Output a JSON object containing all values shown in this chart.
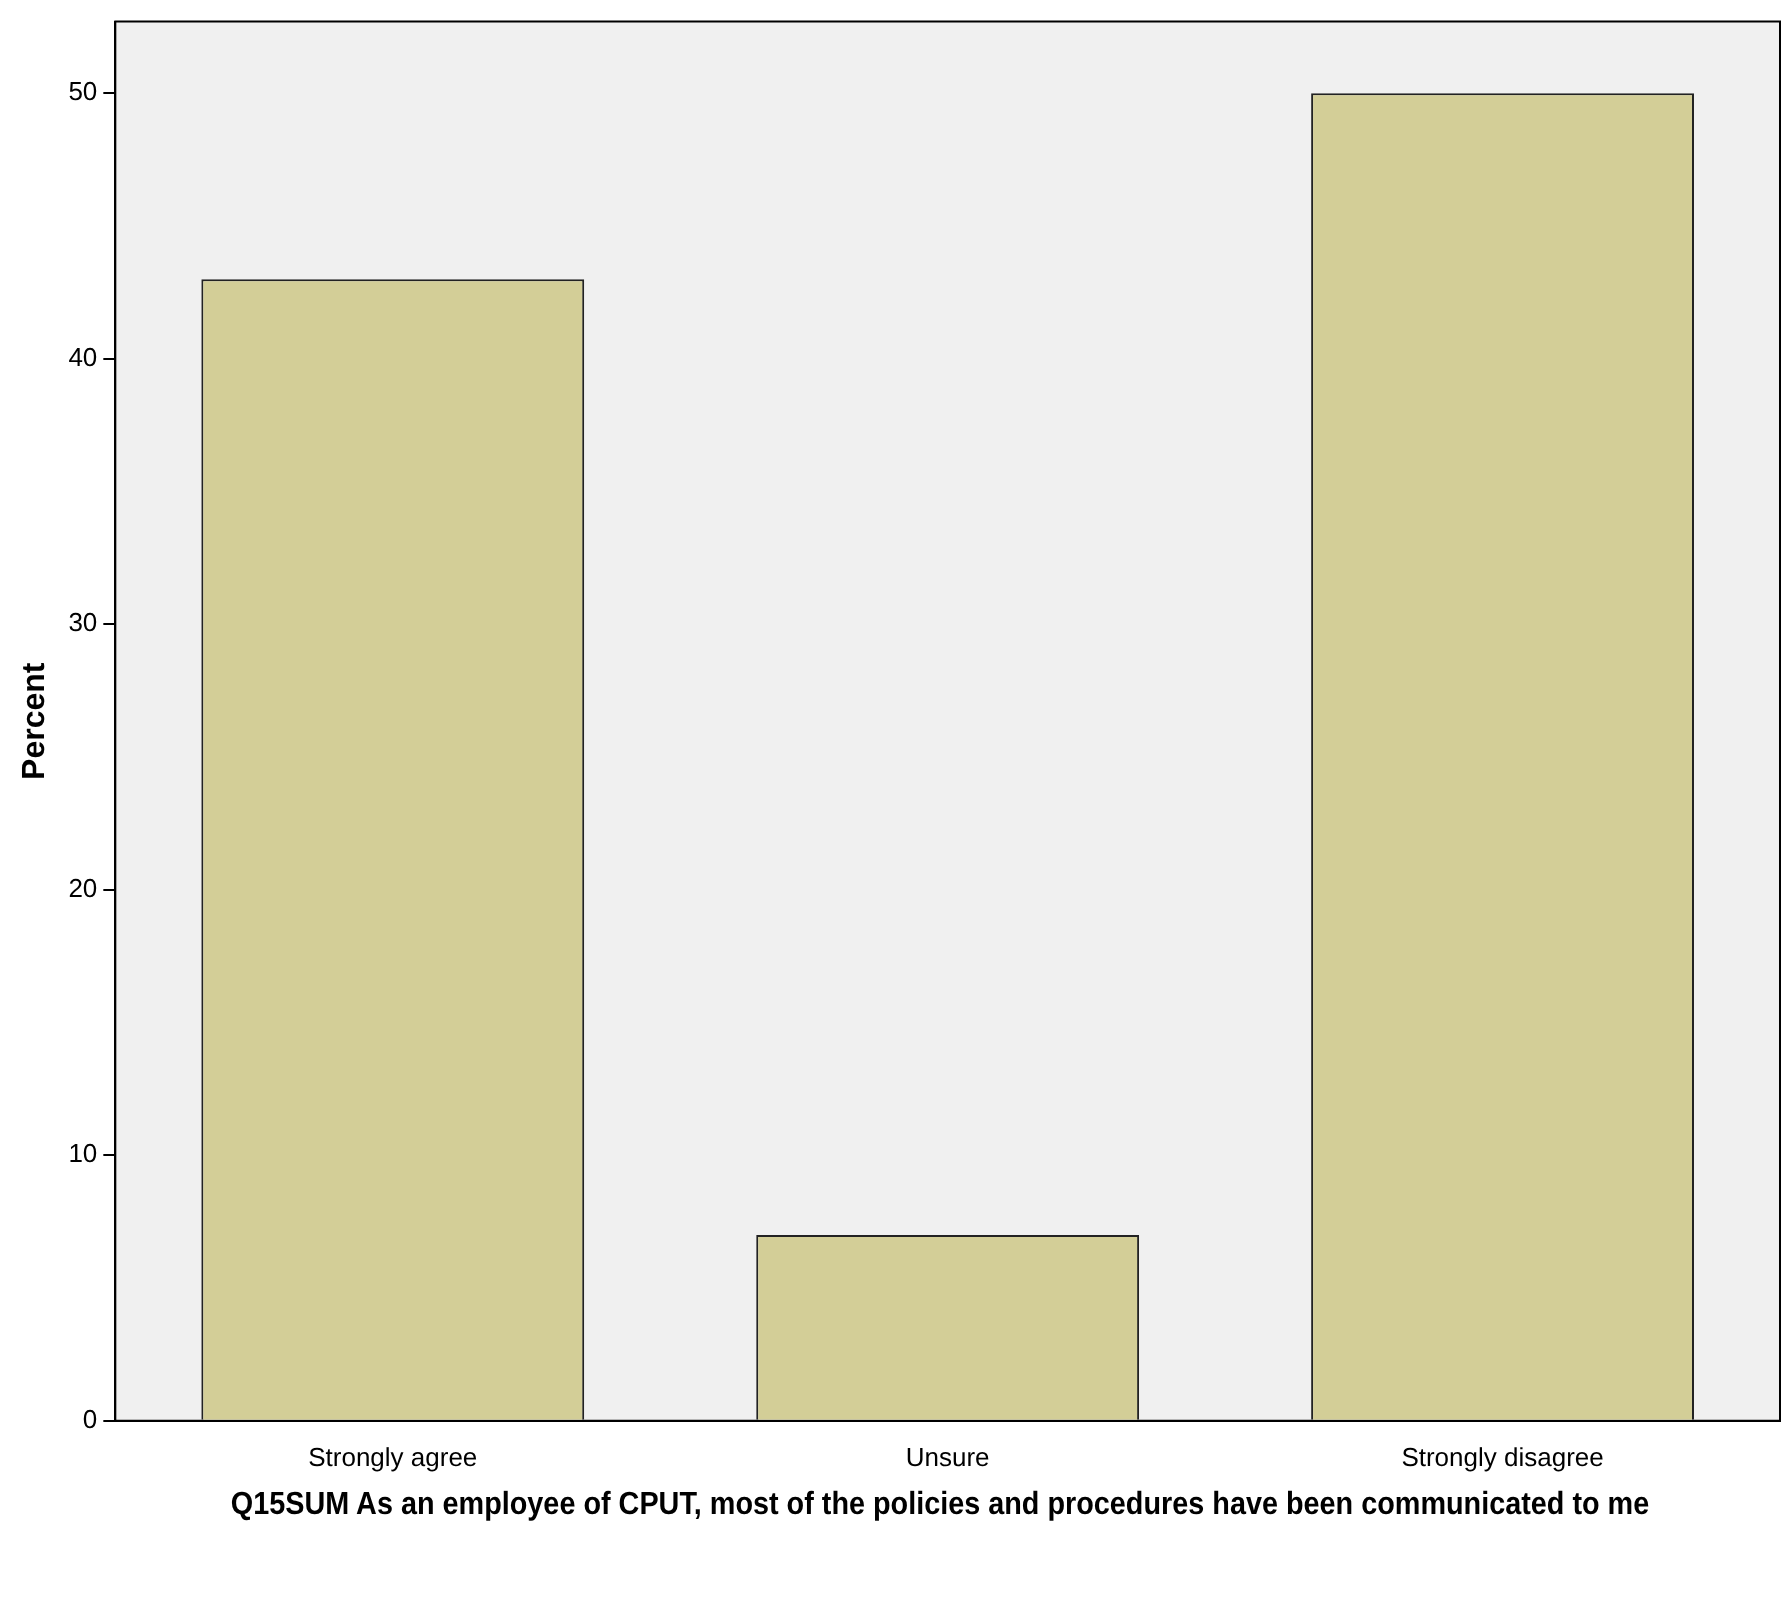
{
  "chart_data": {
    "type": "bar",
    "ylabel": "Percent",
    "xlabel": "Q15SUM As an employee of CPUT, most of the policies and procedures have been communicated to me",
    "categories": [
      "Strongly agree",
      "Unsure",
      "Strongly disagree"
    ],
    "values": [
      43,
      7,
      50
    ],
    "color": "#d3ce97",
    "ylim": [
      0,
      52.7
    ],
    "yticks": [
      0,
      10,
      20,
      30,
      40,
      50
    ],
    "grid": false,
    "legend": false
  }
}
